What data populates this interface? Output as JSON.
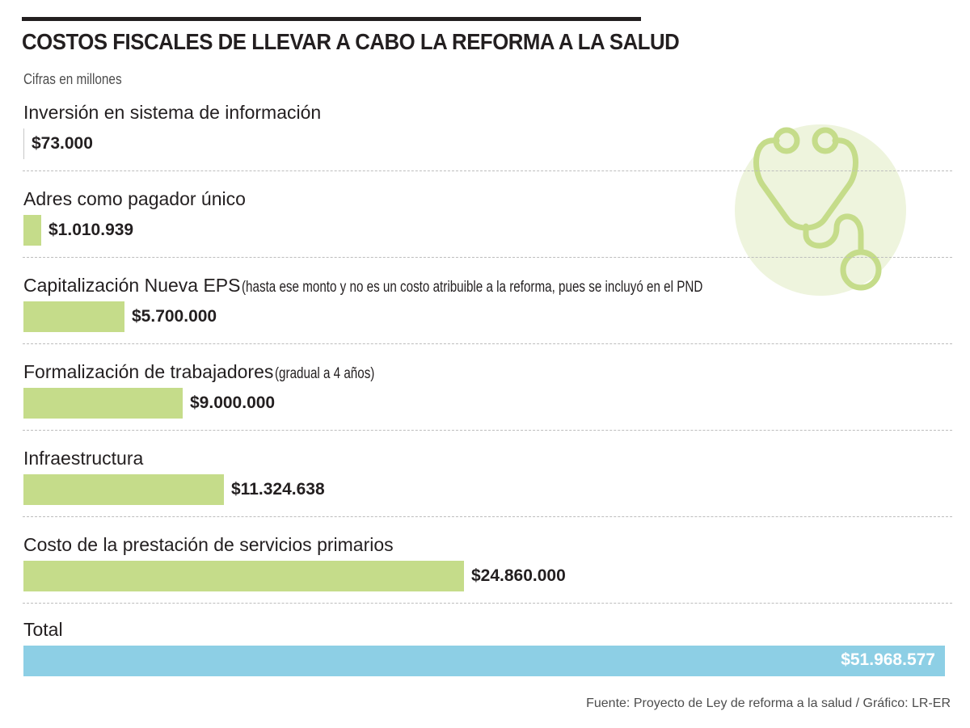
{
  "title": "COSTOS FISCALES DE LLEVAR A CABO LA REFORMA A LA SALUD",
  "subtitle": "Cifras en millones",
  "source": "Fuente: Proyecto de Ley de reforma a la salud / Gráfico: LR-ER",
  "icon": "stethoscope-icon",
  "colors": {
    "bar": "#c5dc8a",
    "total_bar": "#8dcfe5",
    "icon_circle": "#eef4dd",
    "icon_stroke": "#c5dc8a"
  },
  "chart_data": {
    "type": "bar",
    "orientation": "horizontal",
    "title": "COSTOS FISCALES DE LLEVAR A CABO LA REFORMA A LA SALUD",
    "units": "Cifras en millones",
    "categories": [
      {
        "label": "Inversión en sistema de información",
        "note": "",
        "value": 73000,
        "value_label": "$73.000"
      },
      {
        "label": "Adres como pagador único",
        "note": "",
        "value": 1010939,
        "value_label": "$1.010.939"
      },
      {
        "label": "Capitalización Nueva EPS",
        "note": "(hasta ese monto y no es un costo atribuible a la reforma, pues se incluyó en el PND",
        "value": 5700000,
        "value_label": "$5.700.000"
      },
      {
        "label": "Formalización de trabajadores",
        "note": "(gradual a 4 años)",
        "value": 9000000,
        "value_label": "$9.000.000"
      },
      {
        "label": "Infraestructura",
        "note": "",
        "value": 11324638,
        "value_label": "$11.324.638"
      },
      {
        "label": "Costo de la prestación de servicios primarios",
        "note": "",
        "value": 24860000,
        "value_label": "$24.860.000"
      }
    ],
    "total": {
      "label": "Total",
      "value": 51968577,
      "value_label": "$51.968.577"
    },
    "xlim": [
      0,
      51968577
    ]
  }
}
